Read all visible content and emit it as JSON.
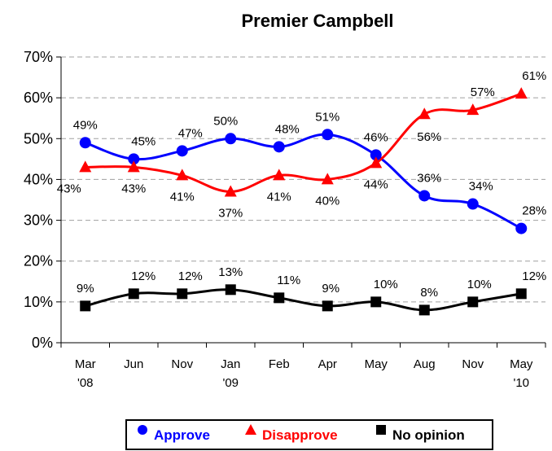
{
  "chart_data": {
    "type": "line",
    "title": "Premier Campbell",
    "categories": [
      [
        "Mar",
        "'08"
      ],
      [
        "Jun",
        ""
      ],
      [
        "Nov",
        ""
      ],
      [
        "Jan",
        "'09"
      ],
      [
        "Feb",
        ""
      ],
      [
        "Apr",
        ""
      ],
      [
        "May",
        ""
      ],
      [
        "Aug",
        ""
      ],
      [
        "Nov",
        ""
      ],
      [
        "May",
        "'10"
      ]
    ],
    "y_ticks": [
      "0%",
      "10%",
      "20%",
      "30%",
      "40%",
      "50%",
      "60%",
      "70%"
    ],
    "ylim": [
      0,
      70
    ],
    "grid": true,
    "legend_position": "bottom",
    "series": [
      {
        "name": "Approve",
        "color": "#0000ff",
        "marker": "circle",
        "values": [
          49,
          45,
          47,
          50,
          48,
          51,
          46,
          36,
          34,
          28
        ],
        "labels": [
          "49%",
          "45%",
          "47%",
          "50%",
          "48%",
          "51%",
          "46%",
          "36%",
          "34%",
          "28%"
        ]
      },
      {
        "name": "Disapprove",
        "color": "#ff0000",
        "marker": "triangle",
        "values": [
          43,
          43,
          41,
          37,
          41,
          40,
          44,
          56,
          57,
          61
        ],
        "labels": [
          "43%",
          "43%",
          "41%",
          "37%",
          "41%",
          "40%",
          "44%",
          "56%",
          "57%",
          "61%"
        ]
      },
      {
        "name": "No opinion",
        "color": "#000000",
        "marker": "square",
        "values": [
          9,
          12,
          12,
          13,
          11,
          9,
          10,
          8,
          10,
          12
        ],
        "labels": [
          "9%",
          "12%",
          "12%",
          "13%",
          "11%",
          "9%",
          "10%",
          "8%",
          "10%",
          "12%"
        ]
      }
    ]
  }
}
